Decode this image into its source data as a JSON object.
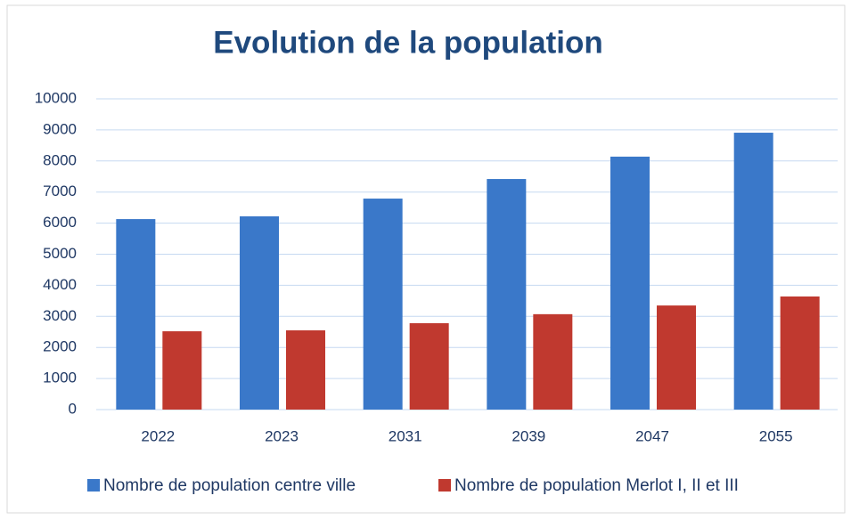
{
  "chart_data": {
    "type": "bar",
    "title": "Evolution de la population",
    "categories": [
      "2022",
      "2023",
      "2031",
      "2039",
      "2047",
      "2055"
    ],
    "series": [
      {
        "name": "Nombre de population centre ville",
        "color": "#3a78c9",
        "values": [
          6130,
          6220,
          6790,
          7420,
          8140,
          8910
        ]
      },
      {
        "name": "Nombre de population Merlot I, II et III",
        "color": "#c0392f",
        "values": [
          2520,
          2550,
          2780,
          3070,
          3350,
          3640
        ]
      }
    ],
    "ylim": [
      0,
      10000
    ],
    "yticks": [
      0,
      1000,
      2000,
      3000,
      4000,
      5000,
      6000,
      7000,
      8000,
      9000,
      10000
    ],
    "grid": true,
    "legend": "bottom"
  }
}
